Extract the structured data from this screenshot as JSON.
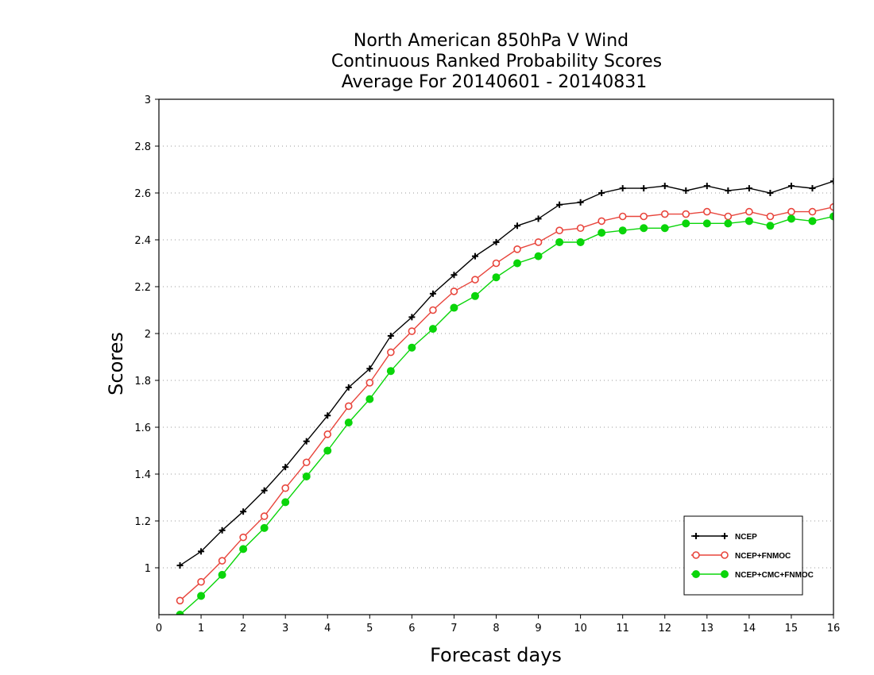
{
  "chart_data": {
    "type": "line",
    "title_lines": [
      "North American 850hPa V Wind",
      "Continuous Ranked Probability Scores",
      "Average For 20140601 - 20140831"
    ],
    "xlabel": "Forecast days",
    "ylabel": "Scores",
    "xlim": [
      0,
      16
    ],
    "ylim": [
      0.8,
      3.0
    ],
    "xticks": [
      "0",
      "1",
      "2",
      "3",
      "4",
      "5",
      "6",
      "7",
      "8",
      "9",
      "10",
      "11",
      "12",
      "13",
      "14",
      "15",
      "16"
    ],
    "yticks": [
      "1",
      "1.2",
      "1.4",
      "1.6",
      "1.8",
      "2",
      "2.2",
      "2.4",
      "2.6",
      "2.8",
      "3"
    ],
    "grid": true,
    "legend_position": "bottom-right",
    "x": [
      0.5,
      1,
      1.5,
      2,
      2.5,
      3,
      3.5,
      4,
      4.5,
      5,
      5.5,
      6,
      6.5,
      7,
      7.5,
      8,
      8.5,
      9,
      9.5,
      10,
      10.5,
      11,
      11.5,
      12,
      12.5,
      13,
      13.5,
      14,
      14.5,
      15,
      15.5,
      16
    ],
    "series": [
      {
        "name": "NCEP",
        "color": "#000000",
        "marker": "plus",
        "values": [
          1.01,
          1.07,
          1.16,
          1.24,
          1.33,
          1.43,
          1.54,
          1.65,
          1.77,
          1.85,
          1.99,
          2.07,
          2.17,
          2.25,
          2.33,
          2.39,
          2.46,
          2.49,
          2.55,
          2.56,
          2.6,
          2.62,
          2.62,
          2.63,
          2.61,
          2.63,
          2.61,
          2.62,
          2.6,
          2.63,
          2.62,
          2.65
        ]
      },
      {
        "name": "NCEP+FNMOC",
        "color": "#e8453c",
        "marker": "open-circle",
        "values": [
          0.86,
          0.94,
          1.03,
          1.13,
          1.22,
          1.34,
          1.45,
          1.57,
          1.69,
          1.79,
          1.92,
          2.01,
          2.1,
          2.18,
          2.23,
          2.3,
          2.36,
          2.39,
          2.44,
          2.45,
          2.48,
          2.5,
          2.5,
          2.51,
          2.51,
          2.52,
          2.5,
          2.52,
          2.5,
          2.52,
          2.52,
          2.54
        ]
      },
      {
        "name": "NCEP+CMC+FNMOC",
        "color": "#0ad50a",
        "marker": "filled-circle",
        "values": [
          0.8,
          0.88,
          0.97,
          1.08,
          1.17,
          1.28,
          1.39,
          1.5,
          1.62,
          1.72,
          1.84,
          1.94,
          2.02,
          2.11,
          2.16,
          2.24,
          2.3,
          2.33,
          2.39,
          2.39,
          2.43,
          2.44,
          2.45,
          2.45,
          2.47,
          2.47,
          2.47,
          2.48,
          2.46,
          2.49,
          2.48,
          2.5
        ]
      }
    ]
  }
}
